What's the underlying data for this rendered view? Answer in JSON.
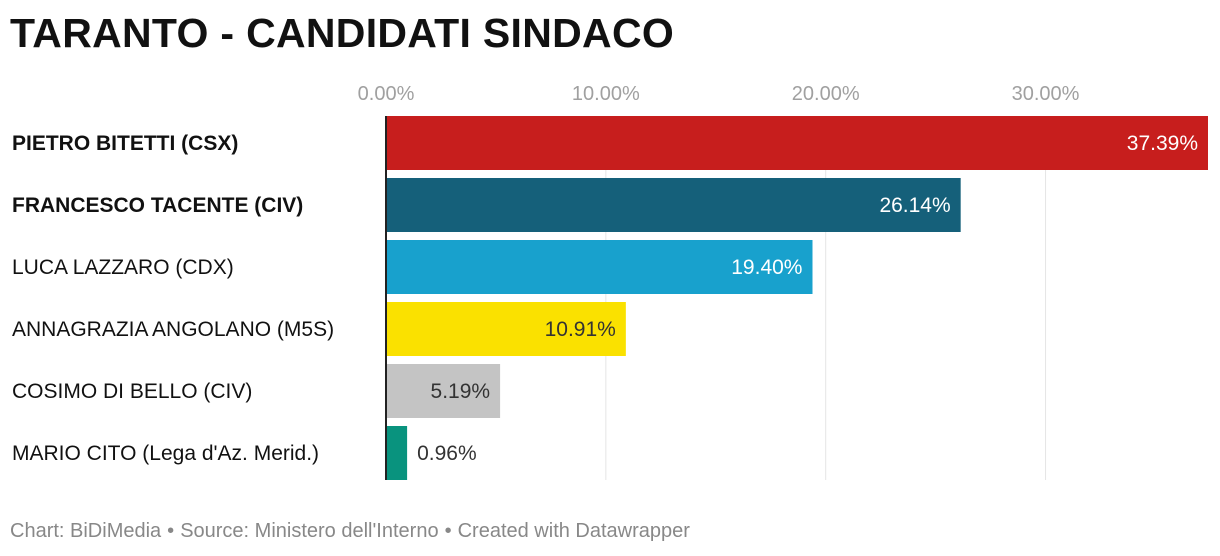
{
  "chart_data": {
    "type": "bar",
    "orientation": "horizontal",
    "title": "TARANTO - CANDIDATI SINDACO",
    "categories": [
      "PIETRO BITETTI (CSX)",
      "FRANCESCO TACENTE (CIV)",
      "LUCA LAZZARO (CDX)",
      "ANNAGRAZIA ANGOLANO (M5S)",
      "COSIMO DI BELLO (CIV)",
      "MARIO CITO (Lega d'Az. Merid.)"
    ],
    "category_bold": [
      true,
      true,
      false,
      false,
      false,
      false
    ],
    "values": [
      37.39,
      26.14,
      19.4,
      10.91,
      5.19,
      0.96
    ],
    "value_labels": [
      "37.39%",
      "26.14%",
      "19.40%",
      "10.91%",
      "5.19%",
      "0.96%"
    ],
    "colors": [
      "#c71e1d",
      "#15607a",
      "#18a1cd",
      "#fae100",
      "#c4c4c4",
      "#09937e"
    ],
    "label_colors": [
      "#ffffff",
      "#ffffff",
      "#ffffff",
      "#333333",
      "#333333",
      "#333333"
    ],
    "x_ticks": [
      0,
      10,
      20,
      30
    ],
    "x_tick_labels": [
      "0.00%",
      "10.00%",
      "20.00%",
      "30.00%"
    ],
    "xlim": [
      0,
      37.39
    ],
    "xlabel": "",
    "ylabel": "",
    "grid": true
  },
  "footer": {
    "chart_credit": "Chart: BiDiMedia",
    "source": "Source: Ministero dell'Interno",
    "created_with": "Created with Datawrapper",
    "separator": "•"
  }
}
